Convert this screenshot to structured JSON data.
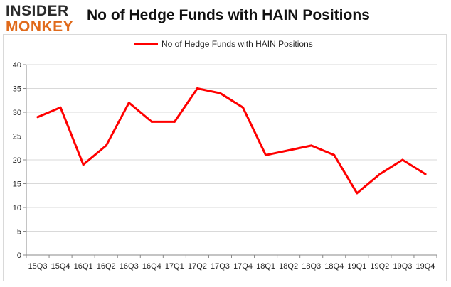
{
  "logo": {
    "line1": "INSIDER",
    "line2": "MONKEY"
  },
  "chart_data": {
    "type": "line",
    "title": "No of Hedge Funds with HAIN Positions",
    "xlabel": "",
    "ylabel": "",
    "categories": [
      "15Q3",
      "15Q4",
      "16Q1",
      "16Q2",
      "16Q3",
      "16Q4",
      "17Q1",
      "17Q2",
      "17Q3",
      "17Q4",
      "18Q1",
      "18Q2",
      "18Q3",
      "18Q4",
      "19Q1",
      "19Q2",
      "19Q3",
      "19Q4"
    ],
    "series": [
      {
        "name": "No of Hedge Funds with HAIN Positions",
        "color": "#ff0000",
        "values": [
          29,
          31,
          19,
          23,
          32,
          28,
          28,
          35,
          34,
          31,
          21,
          22,
          23,
          21,
          13,
          17,
          20,
          17
        ]
      }
    ],
    "ylim": [
      0,
      40
    ],
    "yticks": [
      0,
      5,
      10,
      15,
      20,
      25,
      30,
      35,
      40
    ],
    "grid": true,
    "legend_position": "top-center"
  }
}
